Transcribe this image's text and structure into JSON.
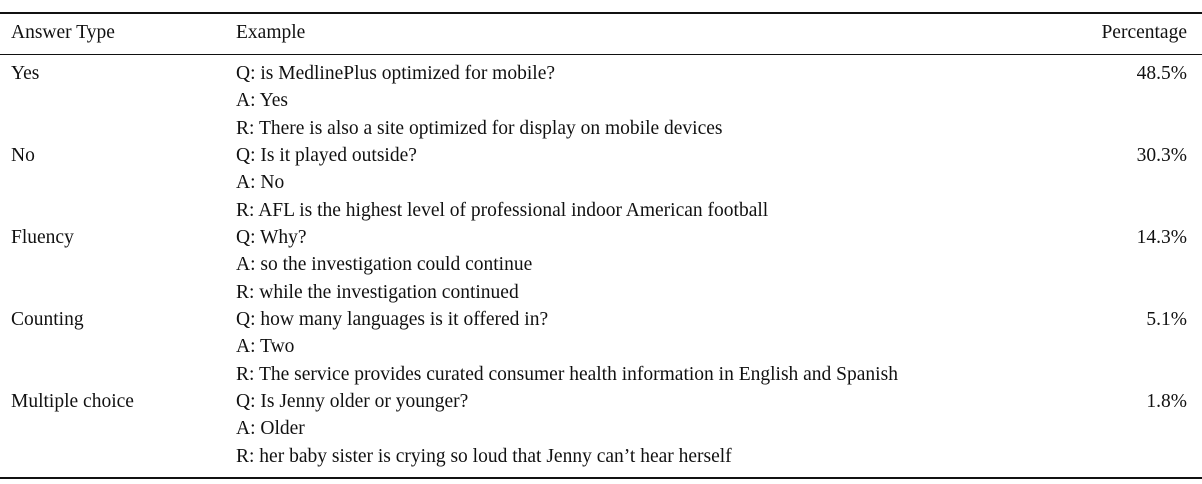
{
  "table": {
    "headers": {
      "answer_type": "Answer Type",
      "example": "Example",
      "percentage": "Percentage"
    },
    "rows": [
      {
        "answer_type": "Yes",
        "q": "Q: is MedlinePlus optimized for mobile?",
        "a": "A: Yes",
        "r": "R: There is also a site optimized for display on mobile devices",
        "percentage": "48.5%"
      },
      {
        "answer_type": "No",
        "q": "Q: Is it played outside?",
        "a": "A: No",
        "r": "R: AFL is the highest level of professional indoor American football",
        "percentage": "30.3%"
      },
      {
        "answer_type": "Fluency",
        "q": "Q: Why?",
        "a": "A: so the investigation could continue",
        "r": "R: while the investigation continued",
        "percentage": "14.3%"
      },
      {
        "answer_type": "Counting",
        "q": "Q: how many languages is it offered in?",
        "a": "A: Two",
        "r": "R: The service provides curated consumer health information in English and Spanish",
        "percentage": "5.1%"
      },
      {
        "answer_type": "Multiple choice",
        "q": "Q: Is Jenny older or younger?",
        "a": "A: Older",
        "r": "R: her baby sister is crying so loud that Jenny can’t hear herself",
        "percentage": "1.8%"
      }
    ]
  }
}
